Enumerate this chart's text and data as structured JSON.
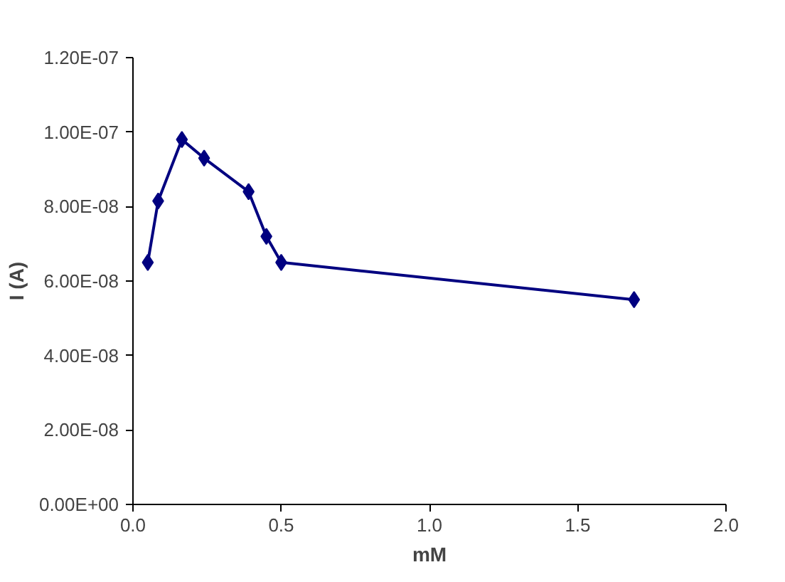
{
  "chart_data": {
    "type": "line",
    "xlabel": "mM",
    "ylabel": "I (A)",
    "x": [
      0.05,
      0.085,
      0.165,
      0.24,
      0.39,
      0.45,
      0.5,
      1.69
    ],
    "series": [
      {
        "color": "#000080",
        "values": [
          6.5e-08,
          8.15e-08,
          9.8e-08,
          9.3e-08,
          8.4e-08,
          7.2e-08,
          6.5e-08,
          5.5e-08
        ]
      }
    ],
    "xlim": [
      0,
      2
    ],
    "xticks": [
      {
        "value": 0,
        "label": "0.0"
      },
      {
        "value": 0.5,
        "label": "0.5"
      },
      {
        "value": 1,
        "label": "1.0"
      },
      {
        "value": 1.5,
        "label": "1.5"
      },
      {
        "value": 2,
        "label": "2.0"
      }
    ],
    "ylim": [
      0,
      1.2e-07
    ],
    "yticks": [
      {
        "value": 0,
        "label": "0.00E+00"
      },
      {
        "value": 2e-08,
        "label": "2.00E-08"
      },
      {
        "value": 4e-08,
        "label": "4.00E-08"
      },
      {
        "value": 6e-08,
        "label": "6.00E-08"
      },
      {
        "value": 8e-08,
        "label": "8.00E-08"
      },
      {
        "value": 1e-07,
        "label": "1.00E-07"
      },
      {
        "value": 1.2e-07,
        "label": "1.20E-07"
      }
    ],
    "marker": "diamond",
    "line_style": "solid",
    "grid": false
  }
}
